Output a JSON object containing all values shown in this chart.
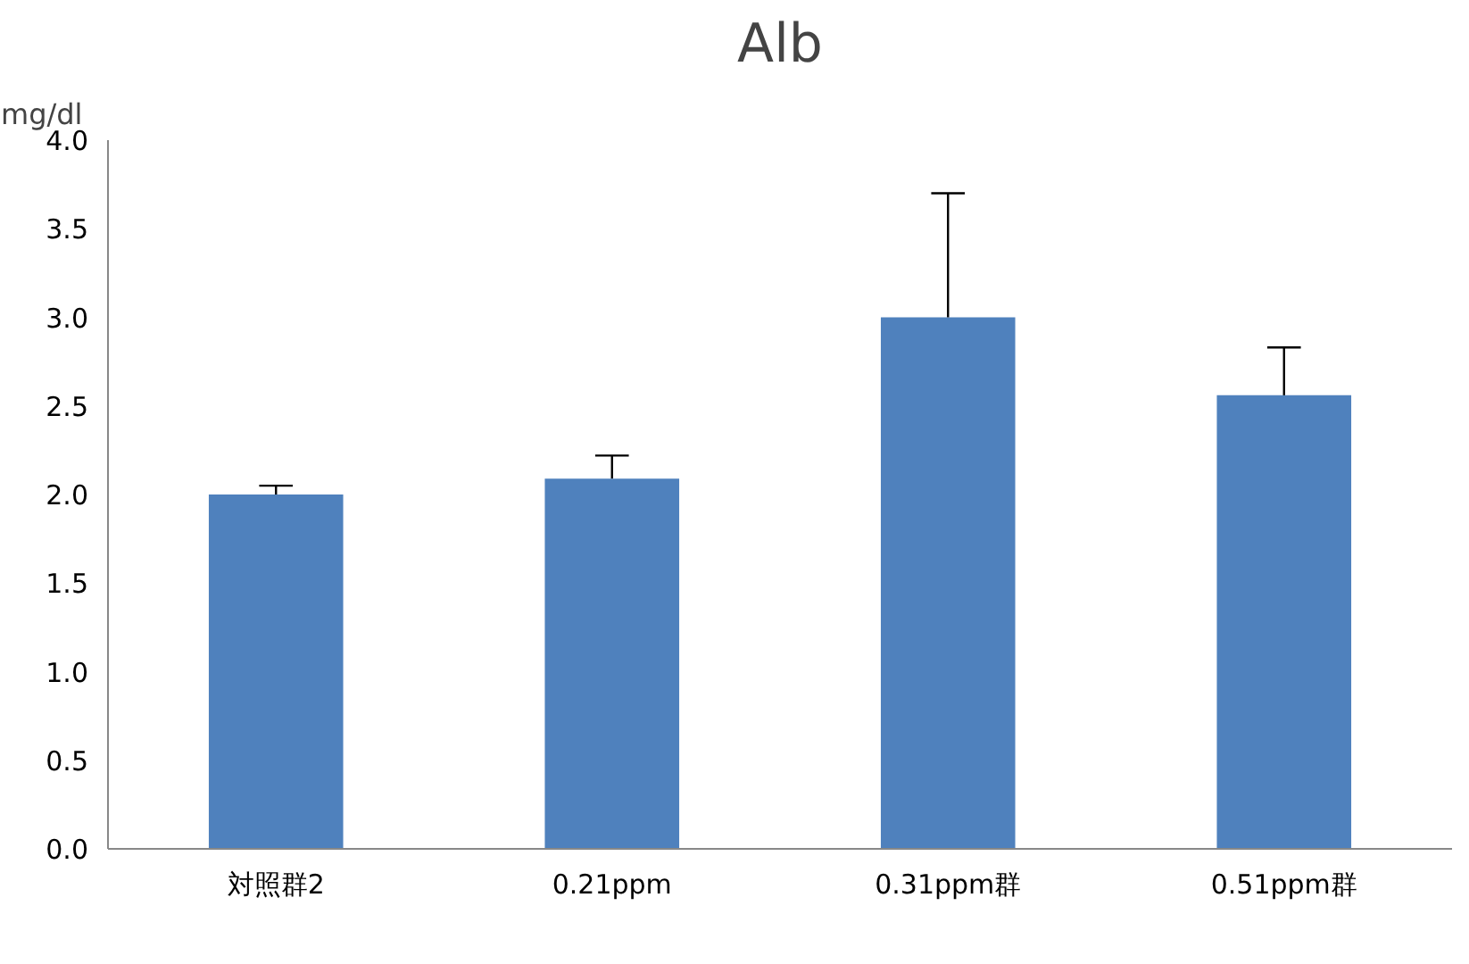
{
  "chart_data": {
    "type": "bar",
    "title": "Alb",
    "ylabel": "mg/dl",
    "categories": [
      "対照群2",
      "0.21ppm",
      "0.31ppm群",
      "0.51ppm群"
    ],
    "values": [
      2.0,
      2.09,
      3.0,
      2.56
    ],
    "errors": [
      [
        2.0,
        2.05
      ],
      [
        2.09,
        2.22
      ],
      [
        3.0,
        3.7
      ],
      [
        2.56,
        2.83
      ]
    ],
    "color": "#4f81bd",
    "ylim": [
      0,
      4
    ],
    "yticks": [
      {
        "value": 0,
        "label": "0.0"
      },
      {
        "value": 0.5,
        "label": "0.5"
      },
      {
        "value": 1,
        "label": "1.0"
      },
      {
        "value": 1.5,
        "label": "1.5"
      },
      {
        "value": 2,
        "label": "2.0"
      },
      {
        "value": 2.5,
        "label": "2.5"
      },
      {
        "value": 3,
        "label": "3.0"
      },
      {
        "value": 3.5,
        "label": "3.5"
      },
      {
        "value": 4,
        "label": "4.0"
      }
    ],
    "grid": false
  }
}
